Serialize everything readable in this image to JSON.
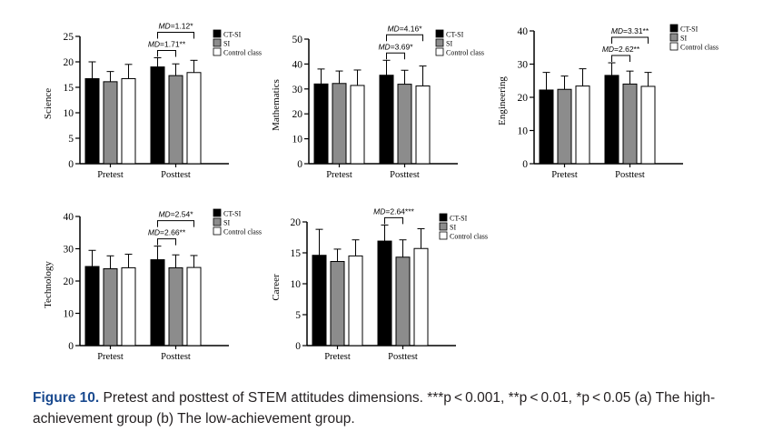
{
  "chart_data": [
    {
      "type": "bar",
      "ylabel": "Science",
      "ylim": [
        0,
        25
      ],
      "yticks": [
        0,
        5,
        10,
        15,
        20,
        25
      ],
      "categories": [
        "Pretest",
        "Posttest"
      ],
      "series": [
        {
          "name": "CT-SI",
          "color": "#000000",
          "values": [
            16.7,
            19.0
          ],
          "errors": [
            3.3,
            1.8
          ]
        },
        {
          "name": "SI",
          "color": "#8c8c8c",
          "values": [
            16.1,
            17.3
          ],
          "errors": [
            2.0,
            2.3
          ]
        },
        {
          "name": "Control class",
          "color": "#ffffff",
          "values": [
            16.7,
            17.9
          ],
          "errors": [
            2.8,
            2.4
          ]
        }
      ],
      "annotations": [
        {
          "text": "MD=1.12*",
          "from": 0,
          "to": 2
        },
        {
          "text": "MD=1.71**",
          "from": 0,
          "to": 1
        }
      ],
      "legend": "top-right"
    },
    {
      "type": "bar",
      "ylabel": "Mathematics",
      "ylim": [
        0,
        50
      ],
      "yticks": [
        0,
        10,
        20,
        30,
        40,
        50
      ],
      "categories": [
        "Pretest",
        "Posttest"
      ],
      "series": [
        {
          "name": "CT-SI",
          "color": "#000000",
          "values": [
            32.0,
            35.5
          ],
          "errors": [
            6.0,
            6.0
          ]
        },
        {
          "name": "SI",
          "color": "#8c8c8c",
          "values": [
            32.2,
            31.9
          ],
          "errors": [
            5.0,
            5.6
          ]
        },
        {
          "name": "Control class",
          "color": "#ffffff",
          "values": [
            31.4,
            31.2
          ],
          "errors": [
            6.2,
            8.0
          ]
        }
      ],
      "annotations": [
        {
          "text": "MD=4.16*",
          "from": 0,
          "to": 2
        },
        {
          "text": "MD=3.69*",
          "from": 0,
          "to": 1
        }
      ],
      "legend": "top-right"
    },
    {
      "type": "bar",
      "ylabel": "Engineering",
      "ylim": [
        0,
        40
      ],
      "yticks": [
        0,
        10,
        20,
        30,
        40
      ],
      "categories": [
        "Pretest",
        "Posttest"
      ],
      "series": [
        {
          "name": "CT-SI",
          "color": "#000000",
          "values": [
            22.2,
            26.6
          ],
          "errors": [
            5.3,
            3.8
          ]
        },
        {
          "name": "SI",
          "color": "#8c8c8c",
          "values": [
            22.4,
            24.0
          ],
          "errors": [
            4.0,
            3.9
          ]
        },
        {
          "name": "Control class",
          "color": "#ffffff",
          "values": [
            23.4,
            23.3
          ],
          "errors": [
            5.2,
            4.2
          ]
        }
      ],
      "annotations": [
        {
          "text": "MD=3.31**",
          "from": 0,
          "to": 2
        },
        {
          "text": "MD=2.62**",
          "from": 0,
          "to": 1
        }
      ],
      "legend": "top-right"
    },
    {
      "type": "bar",
      "ylabel": "Technology",
      "ylim": [
        0,
        40
      ],
      "yticks": [
        0,
        10,
        20,
        30,
        40
      ],
      "categories": [
        "Pretest",
        "Posttest"
      ],
      "series": [
        {
          "name": "CT-SI",
          "color": "#000000",
          "values": [
            24.5,
            26.6
          ],
          "errors": [
            5.0,
            4.2
          ]
        },
        {
          "name": "SI",
          "color": "#8c8c8c",
          "values": [
            23.8,
            24.1
          ],
          "errors": [
            4.0,
            4.0
          ]
        },
        {
          "name": "Control class",
          "color": "#ffffff",
          "values": [
            24.1,
            24.2
          ],
          "errors": [
            4.2,
            3.7
          ]
        }
      ],
      "annotations": [
        {
          "text": "MD=2.54*",
          "from": 0,
          "to": 2
        },
        {
          "text": "MD=2.66**",
          "from": 0,
          "to": 1
        }
      ],
      "legend": "top-right"
    },
    {
      "type": "bar",
      "ylabel": "Career",
      "ylim": [
        0,
        20
      ],
      "yticks": [
        0,
        5,
        10,
        15,
        20
      ],
      "categories": [
        "Pretest",
        "Posttest"
      ],
      "series": [
        {
          "name": "CT-SI",
          "color": "#000000",
          "values": [
            14.6,
            16.9
          ],
          "errors": [
            4.2,
            2.6
          ]
        },
        {
          "name": "SI",
          "color": "#8c8c8c",
          "values": [
            13.6,
            14.3
          ],
          "errors": [
            2.0,
            2.8
          ]
        },
        {
          "name": "Control class",
          "color": "#ffffff",
          "values": [
            14.5,
            15.7
          ],
          "errors": [
            2.6,
            3.2
          ]
        }
      ],
      "annotations": [
        {
          "text": "MD=2.64***",
          "from": 0,
          "to": 1
        }
      ],
      "legend": "top-right"
    }
  ],
  "caption": {
    "label": "Figure 10.",
    "text": " Pretest and posttest of STEM attitudes dimensions. ***p < 0.001, **p < 0.01, *p < 0.05 (a) The high-achievement group (b) The low-achievement group."
  }
}
